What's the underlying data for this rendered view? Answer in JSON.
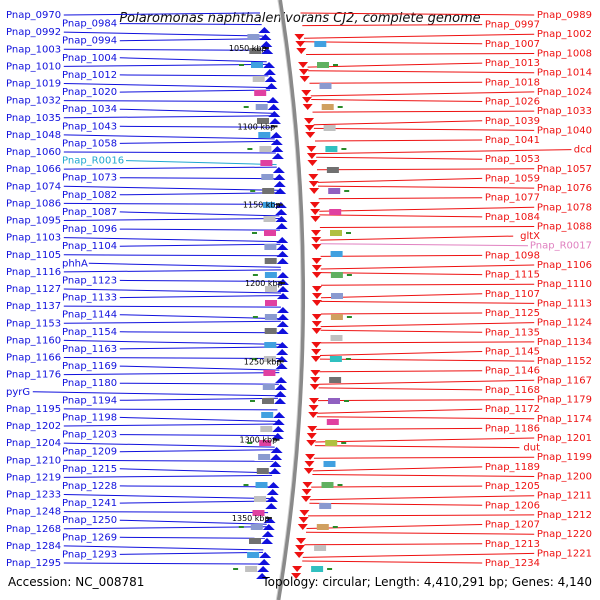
{
  "title": "Polaromonas naphthalenivorans CJ2, complete genome",
  "footer": {
    "accession": "Accession: NC_008781",
    "summary": "Topology: circular; Length: 4,410,291 bp; Genes: 4,140"
  },
  "scale_labels": [
    "1050 kbp",
    "1100 kbp",
    "1150 kbp",
    "1200 kbp",
    "1250 kbp",
    "1300 kbp",
    "1350 kbp"
  ],
  "colors": {
    "forward_strand": "#1010dd",
    "reverse_strand": "#ee1111",
    "rna_left": "#20a8d0",
    "rna_right": "#e080c0",
    "backbone": "#8a8a8a",
    "ticks": "#2a8a2a"
  },
  "left_labels": [
    {
      "text": "Pnap_0970"
    },
    {
      "text": "Pnap_0984"
    },
    {
      "text": "Pnap_0992"
    },
    {
      "text": "Pnap_0994"
    },
    {
      "text": "Pnap_1003"
    },
    {
      "text": "Pnap_1004"
    },
    {
      "text": "Pnap_1010"
    },
    {
      "text": "Pnap_1012"
    },
    {
      "text": "Pnap_1019"
    },
    {
      "text": "Pnap_1020"
    },
    {
      "text": "Pnap_1032"
    },
    {
      "text": "Pnap_1034"
    },
    {
      "text": "Pnap_1035"
    },
    {
      "text": "Pnap_1043"
    },
    {
      "text": "Pnap_1048"
    },
    {
      "text": "Pnap_1058"
    },
    {
      "text": "Pnap_1060"
    },
    {
      "text": "Pnap_R0016",
      "rna": true
    },
    {
      "text": "Pnap_1066"
    },
    {
      "text": "Pnap_1073"
    },
    {
      "text": "Pnap_1074"
    },
    {
      "text": "Pnap_1082"
    },
    {
      "text": "Pnap_1086"
    },
    {
      "text": "Pnap_1087"
    },
    {
      "text": "Pnap_1095"
    },
    {
      "text": "Pnap_1096"
    },
    {
      "text": "Pnap_1103"
    },
    {
      "text": "Pnap_1104"
    },
    {
      "text": "Pnap_1105"
    },
    {
      "text": "phhA"
    },
    {
      "text": "Pnap_1116"
    },
    {
      "text": "Pnap_1123"
    },
    {
      "text": "Pnap_1127"
    },
    {
      "text": "Pnap_1133"
    },
    {
      "text": "Pnap_1137"
    },
    {
      "text": "Pnap_1144"
    },
    {
      "text": "Pnap_1153"
    },
    {
      "text": "Pnap_1154"
    },
    {
      "text": "Pnap_1160"
    },
    {
      "text": "Pnap_1163"
    },
    {
      "text": "Pnap_1166"
    },
    {
      "text": "Pnap_1169"
    },
    {
      "text": "Pnap_1176"
    },
    {
      "text": "Pnap_1180"
    },
    {
      "text": "pyrG"
    },
    {
      "text": "Pnap_1194"
    },
    {
      "text": "Pnap_1195"
    },
    {
      "text": "Pnap_1198"
    },
    {
      "text": "Pnap_1202"
    },
    {
      "text": "Pnap_1203"
    },
    {
      "text": "Pnap_1204"
    },
    {
      "text": "Pnap_1209"
    },
    {
      "text": "Pnap_1210"
    },
    {
      "text": "Pnap_1215"
    },
    {
      "text": "Pnap_1219"
    },
    {
      "text": "Pnap_1228"
    },
    {
      "text": "Pnap_1233"
    },
    {
      "text": "Pnap_1241"
    },
    {
      "text": "Pnap_1248"
    },
    {
      "text": "Pnap_1250"
    },
    {
      "text": "Pnap_1268"
    },
    {
      "text": "Pnap_1269"
    },
    {
      "text": "Pnap_1284"
    },
    {
      "text": "Pnap_1293"
    },
    {
      "text": "Pnap_1295"
    }
  ],
  "right_labels": [
    {
      "text": "Pnap_0989"
    },
    {
      "text": "Pnap_0997"
    },
    {
      "text": "Pnap_1002"
    },
    {
      "text": "Pnap_1007"
    },
    {
      "text": "Pnap_1008"
    },
    {
      "text": "Pnap_1013"
    },
    {
      "text": "Pnap_1014"
    },
    {
      "text": "Pnap_1018"
    },
    {
      "text": "Pnap_1024"
    },
    {
      "text": "Pnap_1026"
    },
    {
      "text": "Pnap_1033"
    },
    {
      "text": "Pnap_1039"
    },
    {
      "text": "Pnap_1040"
    },
    {
      "text": "Pnap_1041"
    },
    {
      "text": "dcd"
    },
    {
      "text": "Pnap_1053"
    },
    {
      "text": "Pnap_1057"
    },
    {
      "text": "Pnap_1059"
    },
    {
      "text": "Pnap_1076"
    },
    {
      "text": "Pnap_1077"
    },
    {
      "text": "Pnap_1078"
    },
    {
      "text": "Pnap_1084"
    },
    {
      "text": "Pnap_1088"
    },
    {
      "text": "gltX"
    },
    {
      "text": "Pnap_R0017",
      "rna": true
    },
    {
      "text": "Pnap_1098"
    },
    {
      "text": "Pnap_1106"
    },
    {
      "text": "Pnap_1115"
    },
    {
      "text": "Pnap_1110"
    },
    {
      "text": "Pnap_1107"
    },
    {
      "text": "Pnap_1113"
    },
    {
      "text": "Pnap_1125"
    },
    {
      "text": "Pnap_1124"
    },
    {
      "text": "Pnap_1135"
    },
    {
      "text": "Pnap_1134"
    },
    {
      "text": "Pnap_1145"
    },
    {
      "text": "Pnap_1152"
    },
    {
      "text": "Pnap_1146"
    },
    {
      "text": "Pnap_1167"
    },
    {
      "text": "Pnap_1168"
    },
    {
      "text": "Pnap_1179"
    },
    {
      "text": "Pnap_1172"
    },
    {
      "text": "Pnap_1174"
    },
    {
      "text": "Pnap_1186"
    },
    {
      "text": "Pnap_1201"
    },
    {
      "text": "dut"
    },
    {
      "text": "Pnap_1199"
    },
    {
      "text": "Pnap_1189"
    },
    {
      "text": "Pnap_1200"
    },
    {
      "text": "Pnap_1205"
    },
    {
      "text": "Pnap_1211"
    },
    {
      "text": "Pnap_1206"
    },
    {
      "text": "Pnap_1212"
    },
    {
      "text": "Pnap_1207"
    },
    {
      "text": "Pnap_1220"
    },
    {
      "text": "Pnap_1213"
    },
    {
      "text": "Pnap_1221"
    },
    {
      "text": "Pnap_1234"
    }
  ]
}
